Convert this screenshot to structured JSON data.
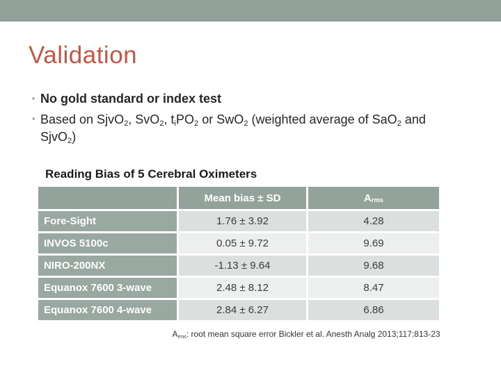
{
  "slide": {
    "title": "Validation",
    "bullets": [
      {
        "segments": [
          {
            "t": "No gold standard or index test",
            "sub": false
          }
        ]
      },
      {
        "segments": [
          {
            "t": "Based on SjvO",
            "sub": false
          },
          {
            "t": "2",
            "sub": true
          },
          {
            "t": ", SvO",
            "sub": false
          },
          {
            "t": "2",
            "sub": true
          },
          {
            "t": ", t",
            "sub": false
          },
          {
            "t": "i",
            "sub": true
          },
          {
            "t": "PO",
            "sub": false
          },
          {
            "t": "2",
            "sub": true
          },
          {
            "t": " or SwO",
            "sub": false
          },
          {
            "t": "2",
            "sub": true
          },
          {
            "t": " (weighted average of SaO",
            "sub": false
          },
          {
            "t": "2",
            "sub": true
          },
          {
            "t": " and SjvO",
            "sub": false
          },
          {
            "t": "2",
            "sub": true
          },
          {
            "t": ")",
            "sub": false
          }
        ]
      }
    ],
    "table_title": "Reading Bias of 5 Cerebral Oximeters",
    "table": {
      "header": {
        "col1": "",
        "col2": "Mean bias ± SD",
        "col3_segments": [
          {
            "t": "A",
            "sub": false
          },
          {
            "t": "rms",
            "sub": true
          }
        ]
      },
      "rows": [
        {
          "label": "Fore-Sight",
          "mean_bias_sd": "1.76 ± 3.92",
          "arms": "4.28"
        },
        {
          "label": "INVOS 5100c",
          "mean_bias_sd": "0.05 ± 9.72",
          "arms": "9.69"
        },
        {
          "label": "NIRO-200NX",
          "mean_bias_sd": "-1.13 ± 9.64",
          "arms": "9.68"
        },
        {
          "label": "Equanox 7600 3-wave",
          "mean_bias_sd": "2.48 ± 8.12",
          "arms": "8.47"
        },
        {
          "label": "Equanox 7600 4-wave",
          "mean_bias_sd": "2.84 ± 6.27",
          "arms": "6.86"
        }
      ]
    },
    "footnote_segments": [
      {
        "t": "A",
        "sub": false
      },
      {
        "t": "rms",
        "sub": true
      },
      {
        "t": ": root mean square error Bickler et al. Anesth Analg 2013;117:813-23",
        "sub": false
      }
    ]
  },
  "colors": {
    "top_band": "#91A098",
    "table_header_green": "#93A29A",
    "row_label_green": "#99A8A0",
    "data_row_dark": "#DBDFDD",
    "data_row_light": "#EDEFEE",
    "title_red": "#C25745"
  }
}
